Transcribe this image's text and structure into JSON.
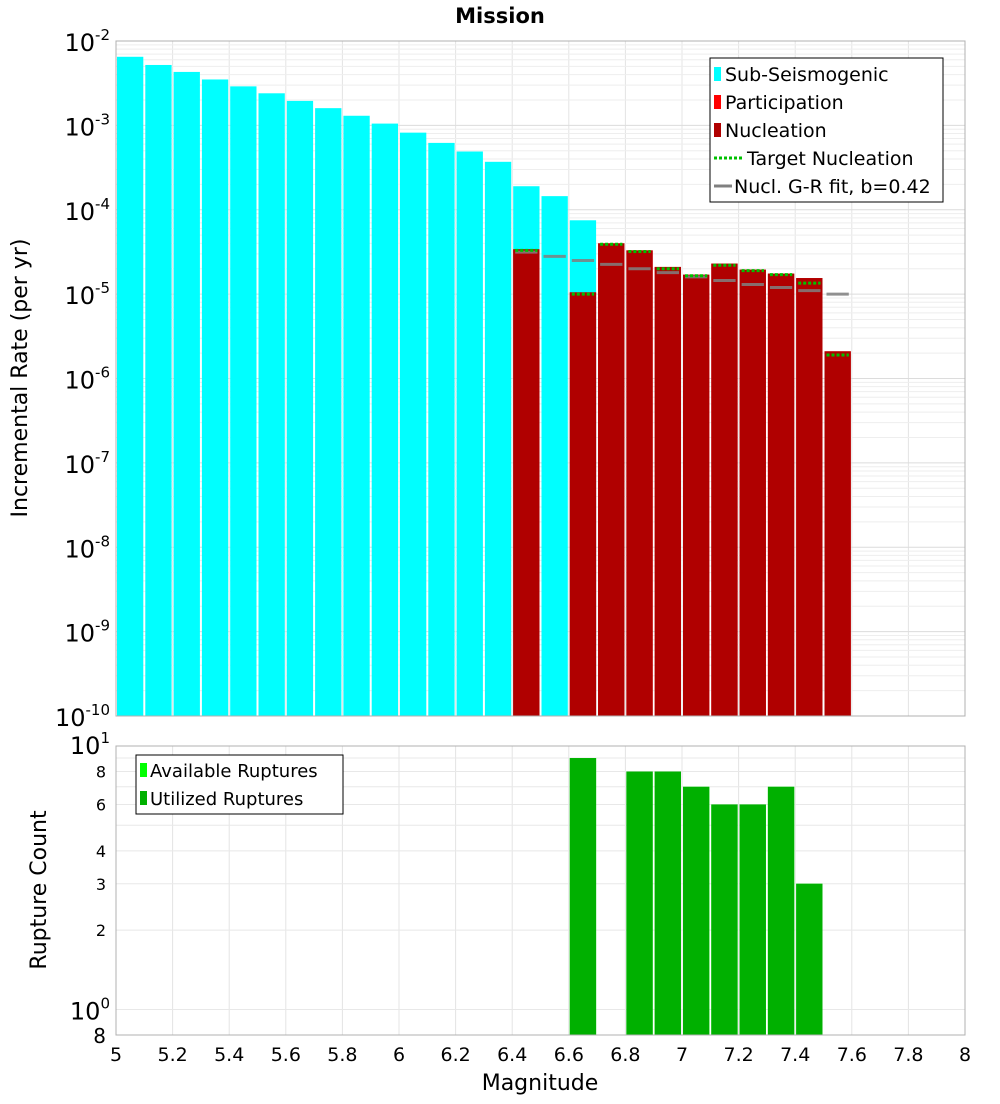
{
  "chart_data": [
    {
      "type": "bar",
      "title": "Mission",
      "ylabel": "Incremental Rate (per yr)",
      "xlabel": "",
      "yscale": "log",
      "ylim": [
        1e-10,
        0.01
      ],
      "xlim": [
        5,
        8
      ],
      "grid": true,
      "legend_position": "top-right",
      "y_tick_labels": [
        {
          "base": "10",
          "exp": "-2"
        },
        {
          "base": "10",
          "exp": "-3"
        },
        {
          "base": "10",
          "exp": "-4"
        },
        {
          "base": "10",
          "exp": "-5"
        },
        {
          "base": "10",
          "exp": "-6"
        },
        {
          "base": "10",
          "exp": "-7"
        },
        {
          "base": "10",
          "exp": "-8"
        },
        {
          "base": "10",
          "exp": "-9"
        },
        {
          "base": "10",
          "exp": "-10"
        }
      ],
      "legend": [
        {
          "label": "Sub-Seismogenic",
          "style": "box",
          "color": "#00ffff"
        },
        {
          "label": "Participation",
          "style": "box",
          "color": "#ff0000"
        },
        {
          "label": "Nucleation",
          "style": "box",
          "color": "#b00000"
        },
        {
          "label": "Target Nucleation",
          "style": "dotted",
          "color": "#00c000"
        },
        {
          "label": "Nucl. G-R fit, b=0.42",
          "style": "line",
          "color": "#808080"
        }
      ],
      "colors": {
        "sub_seismogenic": "#00ffff",
        "participation": "#ff0000",
        "nucleation": "#b00000",
        "target": "#00c000",
        "gr_fit": "#808080"
      },
      "series": [
        {
          "name": "Sub-Seismogenic",
          "points": [
            {
              "x": 5.05,
              "y": 0.0065
            },
            {
              "x": 5.15,
              "y": 0.0052
            },
            {
              "x": 5.25,
              "y": 0.0043
            },
            {
              "x": 5.35,
              "y": 0.0035
            },
            {
              "x": 5.45,
              "y": 0.0029
            },
            {
              "x": 5.55,
              "y": 0.0024
            },
            {
              "x": 5.65,
              "y": 0.00195
            },
            {
              "x": 5.75,
              "y": 0.0016
            },
            {
              "x": 5.85,
              "y": 0.0013
            },
            {
              "x": 5.95,
              "y": 0.00105
            },
            {
              "x": 6.05,
              "y": 0.00082
            },
            {
              "x": 6.15,
              "y": 0.00062
            },
            {
              "x": 6.25,
              "y": 0.00049
            },
            {
              "x": 6.35,
              "y": 0.00037
            },
            {
              "x": 6.45,
              "y": 0.00019
            },
            {
              "x": 6.55,
              "y": 0.000145
            },
            {
              "x": 6.65,
              "y": 7.5e-05
            }
          ]
        },
        {
          "name": "Participation",
          "points": [
            {
              "x": 6.45,
              "y": 3.4e-05
            },
            {
              "x": 6.65,
              "y": 1.05e-05
            },
            {
              "x": 6.75,
              "y": 4e-05
            },
            {
              "x": 6.85,
              "y": 3.3e-05
            },
            {
              "x": 6.95,
              "y": 2.1e-05
            },
            {
              "x": 7.05,
              "y": 1.7e-05
            },
            {
              "x": 7.15,
              "y": 2.3e-05
            },
            {
              "x": 7.25,
              "y": 1.95e-05
            },
            {
              "x": 7.35,
              "y": 1.75e-05
            },
            {
              "x": 7.45,
              "y": 1.55e-05
            },
            {
              "x": 7.55,
              "y": 2.1e-06
            }
          ]
        },
        {
          "name": "Nucleation",
          "points": [
            {
              "x": 6.45,
              "y": 3.4e-05
            },
            {
              "x": 6.65,
              "y": 1.05e-05
            },
            {
              "x": 6.75,
              "y": 4e-05
            },
            {
              "x": 6.85,
              "y": 3.3e-05
            },
            {
              "x": 6.95,
              "y": 2.1e-05
            },
            {
              "x": 7.05,
              "y": 1.7e-05
            },
            {
              "x": 7.15,
              "y": 2.3e-05
            },
            {
              "x": 7.25,
              "y": 1.95e-05
            },
            {
              "x": 7.35,
              "y": 1.75e-05
            },
            {
              "x": 7.45,
              "y": 1.55e-05
            },
            {
              "x": 7.55,
              "y": 2.1e-06
            }
          ]
        },
        {
          "name": "Target Nucleation",
          "points": [
            {
              "x": 6.45,
              "y": 3.3e-05
            },
            {
              "x": 6.65,
              "y": 1e-05
            },
            {
              "x": 6.75,
              "y": 3.9e-05
            },
            {
              "x": 6.85,
              "y": 3.2e-05
            },
            {
              "x": 6.95,
              "y": 2e-05
            },
            {
              "x": 7.05,
              "y": 1.65e-05
            },
            {
              "x": 7.15,
              "y": 2.2e-05
            },
            {
              "x": 7.25,
              "y": 1.9e-05
            },
            {
              "x": 7.35,
              "y": 1.7e-05
            },
            {
              "x": 7.45,
              "y": 1.35e-05
            },
            {
              "x": 7.55,
              "y": 1.9e-06
            }
          ]
        },
        {
          "name": "Nucl. G-R fit, b=0.42",
          "points": [
            {
              "x": 6.45,
              "y": 3.15e-05
            },
            {
              "x": 6.55,
              "y": 2.8e-05
            },
            {
              "x": 6.65,
              "y": 2.5e-05
            },
            {
              "x": 6.75,
              "y": 2.25e-05
            },
            {
              "x": 6.85,
              "y": 2e-05
            },
            {
              "x": 6.95,
              "y": 1.8e-05
            },
            {
              "x": 7.05,
              "y": 1.6e-05
            },
            {
              "x": 7.15,
              "y": 1.45e-05
            },
            {
              "x": 7.25,
              "y": 1.3e-05
            },
            {
              "x": 7.35,
              "y": 1.2e-05
            },
            {
              "x": 7.45,
              "y": 1.1e-05
            },
            {
              "x": 7.55,
              "y": 1e-05
            }
          ]
        }
      ]
    },
    {
      "type": "bar",
      "xlabel": "Magnitude",
      "ylabel": "Rupture Count",
      "yscale": "log",
      "ylim": [
        0.8,
        10
      ],
      "xlim": [
        5,
        8
      ],
      "grid": true,
      "legend_position": "top-left",
      "x_ticks": [
        "5",
        "5.2",
        "5.4",
        "5.6",
        "5.8",
        "6",
        "6.2",
        "6.4",
        "6.6",
        "6.8",
        "7",
        "7.2",
        "7.4",
        "7.6",
        "7.8",
        "8"
      ],
      "y_tick_labels": [
        {
          "value": 8,
          "text": "8"
        },
        {
          "value": 6,
          "text": "6"
        },
        {
          "value": 4,
          "text": "4"
        },
        {
          "value": 3,
          "text": "3"
        },
        {
          "value": 2,
          "text": "2"
        }
      ],
      "y_decade_labels": [
        {
          "base": "10",
          "exp": "1"
        },
        {
          "base": "10",
          "exp": "0"
        }
      ],
      "y_bottom_label": "8",
      "legend": [
        {
          "label": "Available Ruptures",
          "color": "#00ff00"
        },
        {
          "label": "Utilized Ruptures",
          "color": "#00b000"
        }
      ],
      "colors": {
        "available": "#00ff00",
        "utilized": "#00b000"
      },
      "series": [
        {
          "name": "Available Ruptures",
          "points": [
            {
              "x": 6.65,
              "y": 9
            },
            {
              "x": 6.85,
              "y": 8
            },
            {
              "x": 6.95,
              "y": 8
            },
            {
              "x": 7.05,
              "y": 7
            },
            {
              "x": 7.15,
              "y": 6
            },
            {
              "x": 7.25,
              "y": 6
            },
            {
              "x": 7.35,
              "y": 7
            },
            {
              "x": 7.45,
              "y": 3
            }
          ]
        },
        {
          "name": "Utilized Ruptures",
          "points": [
            {
              "x": 6.65,
              "y": 9
            },
            {
              "x": 6.85,
              "y": 8
            },
            {
              "x": 6.95,
              "y": 8
            },
            {
              "x": 7.05,
              "y": 7
            },
            {
              "x": 7.15,
              "y": 6
            },
            {
              "x": 7.25,
              "y": 6
            },
            {
              "x": 7.35,
              "y": 7
            },
            {
              "x": 7.45,
              "y": 3
            }
          ]
        }
      ]
    }
  ]
}
